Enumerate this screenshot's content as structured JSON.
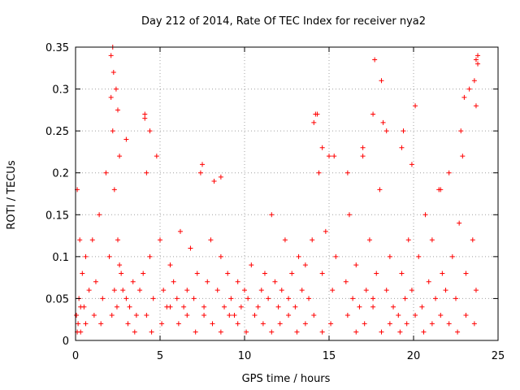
{
  "chart_data": {
    "type": "scatter",
    "title": "Day 212 of 2014, Rate Of TEC Index for receiver nya2",
    "xlabel": "GPS time / hours",
    "ylabel": "ROTI / TECUs",
    "xlim": [
      0,
      25
    ],
    "ylim": [
      0,
      0.35
    ],
    "xticks": [
      0,
      5,
      10,
      15,
      20,
      25
    ],
    "xtick_labels": [
      "0",
      "5",
      "10",
      "15",
      "20",
      "25"
    ],
    "yticks": [
      0,
      0.05,
      0.1,
      0.15,
      0.2,
      0.25,
      0.3,
      0.35
    ],
    "ytick_labels": [
      "0",
      "0.05",
      "0.1",
      "0.15",
      "0.2",
      "0.25",
      "0.3",
      "0.35"
    ],
    "grid": true,
    "marker": "+",
    "series": [
      {
        "name": "ROTI",
        "color": "#ff0000",
        "x": [
          0.05,
          0.1,
          0.15,
          0.2,
          0.25,
          0.3,
          0.4,
          0.5,
          0.6,
          0.8,
          1.0,
          1.2,
          1.4,
          1.6,
          1.8,
          2.0,
          2.1,
          2.2,
          2.3,
          2.4,
          2.5,
          2.6,
          2.7,
          2.8,
          3.0,
          3.2,
          3.4,
          3.6,
          3.8,
          4.0,
          4.1,
          4.2,
          4.4,
          4.6,
          4.8,
          5.0,
          5.2,
          5.4,
          5.6,
          5.8,
          6.0,
          6.2,
          6.4,
          6.6,
          6.8,
          7.0,
          7.2,
          7.4,
          7.6,
          7.8,
          8.0,
          8.2,
          8.4,
          8.6,
          8.8,
          9.0,
          9.2,
          9.4,
          9.6,
          9.8,
          10.0,
          10.2,
          10.4,
          10.6,
          10.8,
          11.0,
          11.2,
          11.4,
          11.6,
          11.8,
          12.0,
          12.2,
          12.4,
          12.6,
          12.8,
          13.0,
          13.2,
          13.4,
          13.6,
          13.8,
          14.0,
          14.2,
          14.4,
          14.6,
          14.8,
          15.0,
          15.2,
          15.4,
          16.0,
          16.2,
          16.4,
          16.6,
          16.8,
          17.0,
          17.2,
          17.4,
          17.6,
          17.8,
          18.0,
          18.2,
          18.4,
          18.6,
          18.8,
          19.1,
          19.3,
          19.5,
          19.7,
          19.9,
          20.1,
          20.3,
          20.5,
          20.7,
          20.9,
          21.1,
          21.3,
          21.5,
          21.7,
          21.9,
          22.1,
          22.3,
          22.5,
          22.7,
          22.9,
          23.1,
          23.3,
          23.5,
          23.7,
          23.8,
          0.1,
          0.3,
          0.6,
          1.1,
          1.5,
          2.15,
          2.3,
          2.45,
          2.6,
          3.1,
          3.5,
          4.2,
          4.5,
          5.1,
          5.6,
          6.1,
          6.6,
          7.1,
          7.6,
          8.1,
          8.6,
          9.1,
          9.6,
          10.1,
          10.6,
          11.1,
          11.6,
          12.1,
          12.6,
          13.1,
          13.6,
          14.1,
          14.6,
          15.1,
          16.1,
          16.6,
          17.1,
          17.6,
          18.1,
          18.6,
          19.2,
          19.6,
          20.1,
          20.6,
          21.1,
          21.6,
          22.1,
          22.6,
          23.1,
          23.6,
          2.2,
          2.25,
          4.1,
          4.4,
          14.3,
          14.1,
          17.0,
          17.6,
          18.4,
          19.4,
          19.3,
          23.0,
          23.6,
          23.7,
          23.8,
          23.7,
          17.7,
          18.1,
          2.1,
          2.5,
          3.0,
          7.5,
          8.6,
          14.6,
          15.3,
          16.1,
          19.9,
          21.6,
          22.8
        ],
        "values": [
          0.03,
          0.18,
          0.02,
          0.05,
          0.12,
          0.01,
          0.08,
          0.04,
          0.1,
          0.06,
          0.12,
          0.07,
          0.15,
          0.05,
          0.2,
          0.1,
          0.34,
          0.25,
          0.18,
          0.3,
          0.12,
          0.22,
          0.08,
          0.06,
          0.05,
          0.04,
          0.07,
          0.03,
          0.06,
          0.08,
          0.27,
          0.2,
          0.1,
          0.05,
          0.22,
          0.12,
          0.06,
          0.04,
          0.09,
          0.07,
          0.05,
          0.13,
          0.04,
          0.06,
          0.11,
          0.05,
          0.08,
          0.2,
          0.04,
          0.07,
          0.12,
          0.19,
          0.06,
          0.1,
          0.04,
          0.08,
          0.05,
          0.03,
          0.07,
          0.04,
          0.06,
          0.05,
          0.09,
          0.03,
          0.04,
          0.06,
          0.08,
          0.05,
          0.15,
          0.07,
          0.04,
          0.06,
          0.12,
          0.05,
          0.08,
          0.04,
          0.1,
          0.06,
          0.09,
          0.05,
          0.12,
          0.27,
          0.2,
          0.08,
          0.13,
          0.22,
          0.06,
          0.1,
          0.07,
          0.15,
          0.05,
          0.09,
          0.04,
          0.22,
          0.06,
          0.12,
          0.05,
          0.08,
          0.18,
          0.26,
          0.06,
          0.1,
          0.04,
          0.03,
          0.08,
          0.05,
          0.12,
          0.06,
          0.28,
          0.1,
          0.04,
          0.15,
          0.07,
          0.12,
          0.05,
          0.18,
          0.08,
          0.06,
          0.2,
          0.1,
          0.05,
          0.14,
          0.22,
          0.08,
          0.3,
          0.12,
          0.06,
          0.33,
          0.01,
          0.04,
          0.02,
          0.03,
          0.02,
          0.03,
          0.06,
          0.04,
          0.09,
          0.02,
          0.01,
          0.03,
          0.01,
          0.02,
          0.04,
          0.02,
          0.03,
          0.01,
          0.03,
          0.02,
          0.01,
          0.03,
          0.02,
          0.01,
          0.03,
          0.02,
          0.01,
          0.02,
          0.03,
          0.01,
          0.02,
          0.03,
          0.01,
          0.02,
          0.03,
          0.01,
          0.02,
          0.04,
          0.01,
          0.02,
          0.01,
          0.02,
          0.03,
          0.01,
          0.02,
          0.03,
          0.02,
          0.01,
          0.03,
          0.02,
          0.35,
          0.32,
          0.265,
          0.25,
          0.27,
          0.26,
          0.23,
          0.27,
          0.25,
          0.25,
          0.23,
          0.29,
          0.31,
          0.335,
          0.34,
          0.28,
          0.335,
          0.31,
          0.29,
          0.275,
          0.24,
          0.21,
          0.195,
          0.23,
          0.22,
          0.2,
          0.21,
          0.18,
          0.25
        ]
      }
    ]
  }
}
